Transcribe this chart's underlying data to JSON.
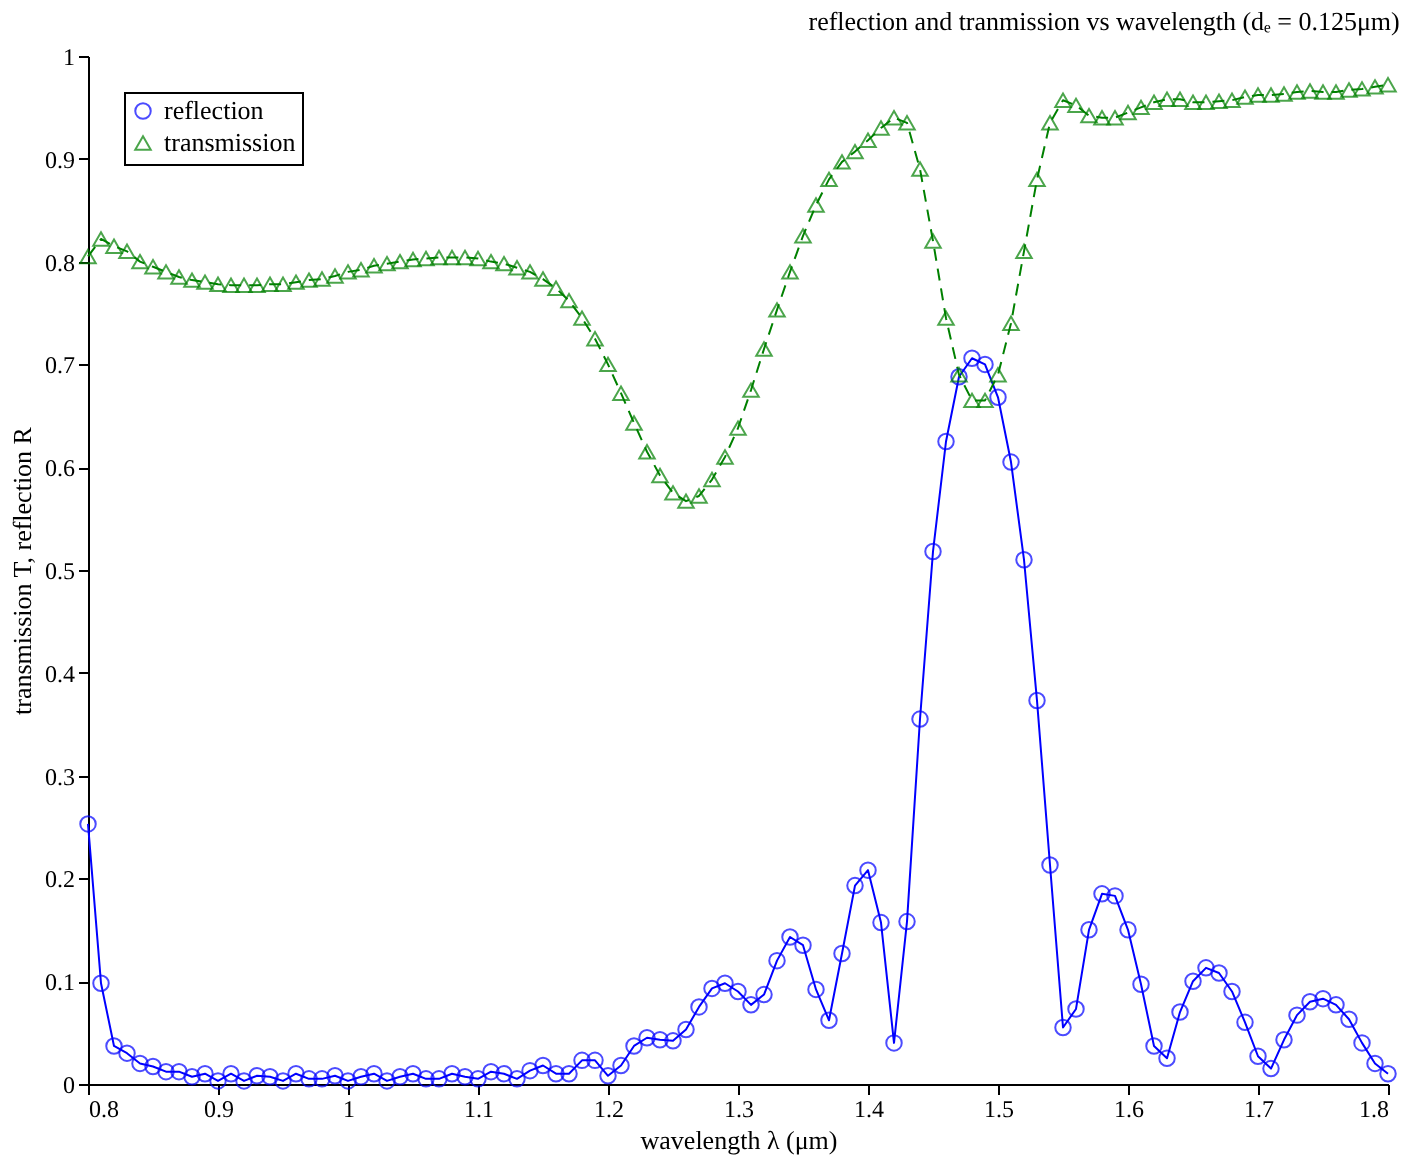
{
  "chart_data": {
    "type": "line",
    "title": "reflection and tranmission vs wavelength (dₑ = 0.125μm)",
    "xlabel": "wavelength λ (μm)",
    "ylabel": "transmission T, reflection R",
    "x": [
      0.8,
      0.81,
      0.82,
      0.83,
      0.84,
      0.85,
      0.86,
      0.87,
      0.88,
      0.89,
      0.9,
      0.91,
      0.92,
      0.93,
      0.94,
      0.95,
      0.96,
      0.97,
      0.98,
      0.99,
      1.0,
      1.01,
      1.02,
      1.03,
      1.04,
      1.05,
      1.06,
      1.07,
      1.08,
      1.09,
      1.1,
      1.11,
      1.12,
      1.13,
      1.14,
      1.15,
      1.16,
      1.17,
      1.18,
      1.19,
      1.2,
      1.21,
      1.22,
      1.23,
      1.24,
      1.25,
      1.26,
      1.27,
      1.28,
      1.29,
      1.3,
      1.31,
      1.32,
      1.33,
      1.34,
      1.35,
      1.36,
      1.37,
      1.38,
      1.39,
      1.4,
      1.41,
      1.42,
      1.43,
      1.44,
      1.45,
      1.46,
      1.47,
      1.48,
      1.49,
      1.5,
      1.51,
      1.52,
      1.53,
      1.54,
      1.55,
      1.56,
      1.57,
      1.58,
      1.59,
      1.6,
      1.61,
      1.62,
      1.63,
      1.64,
      1.65,
      1.66,
      1.67,
      1.68,
      1.69,
      1.7,
      1.71,
      1.72,
      1.73,
      1.74,
      1.75,
      1.76,
      1.77,
      1.78,
      1.79,
      1.8
    ],
    "series": [
      {
        "name": "reflection",
        "color": "#0000ff",
        "marker": "circle",
        "line_style": "solid",
        "values": [
          0.253,
          0.098,
          0.037,
          0.03,
          0.02,
          0.017,
          0.012,
          0.012,
          0.007,
          0.01,
          0.003,
          0.01,
          0.003,
          0.008,
          0.007,
          0.003,
          0.01,
          0.005,
          0.005,
          0.008,
          0.003,
          0.007,
          0.01,
          0.003,
          0.007,
          0.01,
          0.005,
          0.005,
          0.01,
          0.007,
          0.005,
          0.012,
          0.01,
          0.005,
          0.013,
          0.018,
          0.01,
          0.01,
          0.023,
          0.023,
          0.008,
          0.018,
          0.037,
          0.045,
          0.043,
          0.042,
          0.053,
          0.075,
          0.093,
          0.098,
          0.09,
          0.077,
          0.087,
          0.12,
          0.143,
          0.135,
          0.092,
          0.062,
          0.127,
          0.193,
          0.208,
          0.157,
          0.04,
          0.158,
          0.355,
          0.518,
          0.625,
          0.688,
          0.706,
          0.7,
          0.668,
          0.605,
          0.51,
          0.373,
          0.213,
          0.055,
          0.073,
          0.15,
          0.185,
          0.183,
          0.15,
          0.097,
          0.037,
          0.025,
          0.07,
          0.1,
          0.113,
          0.108,
          0.09,
          0.06,
          0.027,
          0.015,
          0.043,
          0.067,
          0.08,
          0.083,
          0.077,
          0.063,
          0.04,
          0.02,
          0.01
        ]
      },
      {
        "name": "transmission",
        "color": "#008000",
        "marker": "triangle",
        "line_style": "dashed",
        "values": [
          0.805,
          0.822,
          0.815,
          0.81,
          0.8,
          0.795,
          0.79,
          0.785,
          0.782,
          0.78,
          0.778,
          0.777,
          0.777,
          0.777,
          0.778,
          0.778,
          0.78,
          0.782,
          0.783,
          0.786,
          0.79,
          0.792,
          0.796,
          0.798,
          0.8,
          0.802,
          0.803,
          0.804,
          0.804,
          0.804,
          0.803,
          0.8,
          0.798,
          0.794,
          0.79,
          0.783,
          0.774,
          0.762,
          0.745,
          0.725,
          0.7,
          0.672,
          0.643,
          0.615,
          0.592,
          0.575,
          0.567,
          0.572,
          0.588,
          0.61,
          0.638,
          0.675,
          0.715,
          0.753,
          0.79,
          0.825,
          0.855,
          0.88,
          0.897,
          0.907,
          0.918,
          0.93,
          0.94,
          0.935,
          0.89,
          0.82,
          0.745,
          0.69,
          0.665,
          0.665,
          0.69,
          0.74,
          0.81,
          0.88,
          0.935,
          0.957,
          0.952,
          0.942,
          0.94,
          0.94,
          0.945,
          0.95,
          0.955,
          0.958,
          0.958,
          0.955,
          0.955,
          0.956,
          0.957,
          0.96,
          0.962,
          0.962,
          0.963,
          0.965,
          0.966,
          0.965,
          0.965,
          0.967,
          0.968,
          0.97,
          0.972
        ]
      }
    ],
    "xlim": [
      0.8,
      1.8
    ],
    "xticks": [
      0.8,
      0.9,
      1,
      1.1,
      1.2,
      1.3,
      1.4,
      1.5,
      1.6,
      1.7,
      1.8
    ],
    "ylim": [
      0,
      1
    ],
    "yticks": [
      0,
      0.1,
      0.2,
      0.3,
      0.4,
      0.5,
      0.6,
      0.7,
      0.8,
      0.9,
      1
    ],
    "grid": false,
    "legend": "top left"
  }
}
